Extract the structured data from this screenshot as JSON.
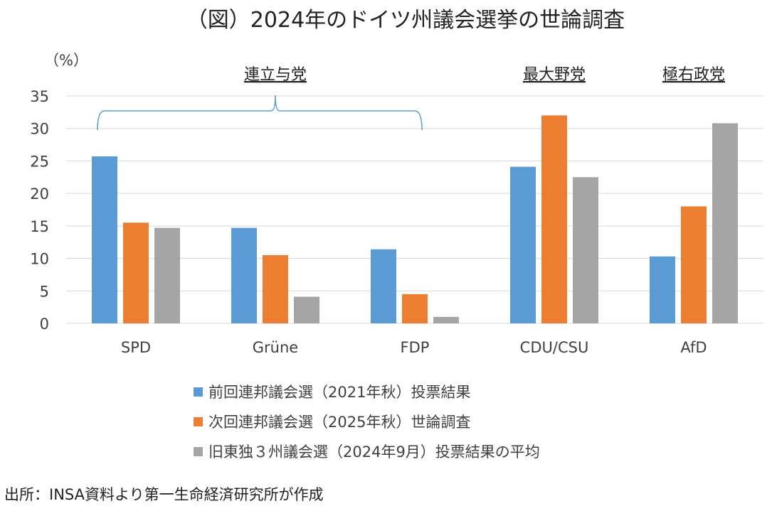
{
  "chart_data": {
    "type": "bar",
    "title": "（図）2024年のドイツ州議会選挙の世論調査",
    "ylabel": "（%）",
    "ylim": [
      0,
      35
    ],
    "yticks": [
      0,
      5,
      10,
      15,
      20,
      25,
      30,
      35
    ],
    "grid": true,
    "legend_position": "bottom",
    "categories": [
      "SPD",
      "Grüne",
      "FDP",
      "CDU/CSU",
      "AfD"
    ],
    "series": [
      {
        "name": "前回連邦議会選（2021年秋）投票結果",
        "color": "#5B9BD5",
        "values": [
          25.7,
          14.7,
          11.4,
          24.1,
          10.3
        ]
      },
      {
        "name": "次回連邦議会選（2025年秋）世論調査",
        "color": "#ED7D31",
        "values": [
          15.5,
          10.5,
          4.5,
          32.0,
          18.0
        ]
      },
      {
        "name": "旧東独３州議会選（2024年9月）投票結果の平均",
        "color": "#A5A5A5",
        "values": [
          14.7,
          4.1,
          1.0,
          22.5,
          30.8
        ]
      }
    ],
    "group_labels": [
      {
        "text": "連立与党",
        "categories": [
          "SPD",
          "Grüne",
          "FDP"
        ],
        "brace": true
      },
      {
        "text": "最大野党",
        "categories": [
          "CDU/CSU"
        ],
        "brace": false
      },
      {
        "text": "極右政党",
        "categories": [
          "AfD"
        ],
        "brace": false
      }
    ]
  },
  "source": "出所：INSA資料より第一生命経済研究所が作成"
}
